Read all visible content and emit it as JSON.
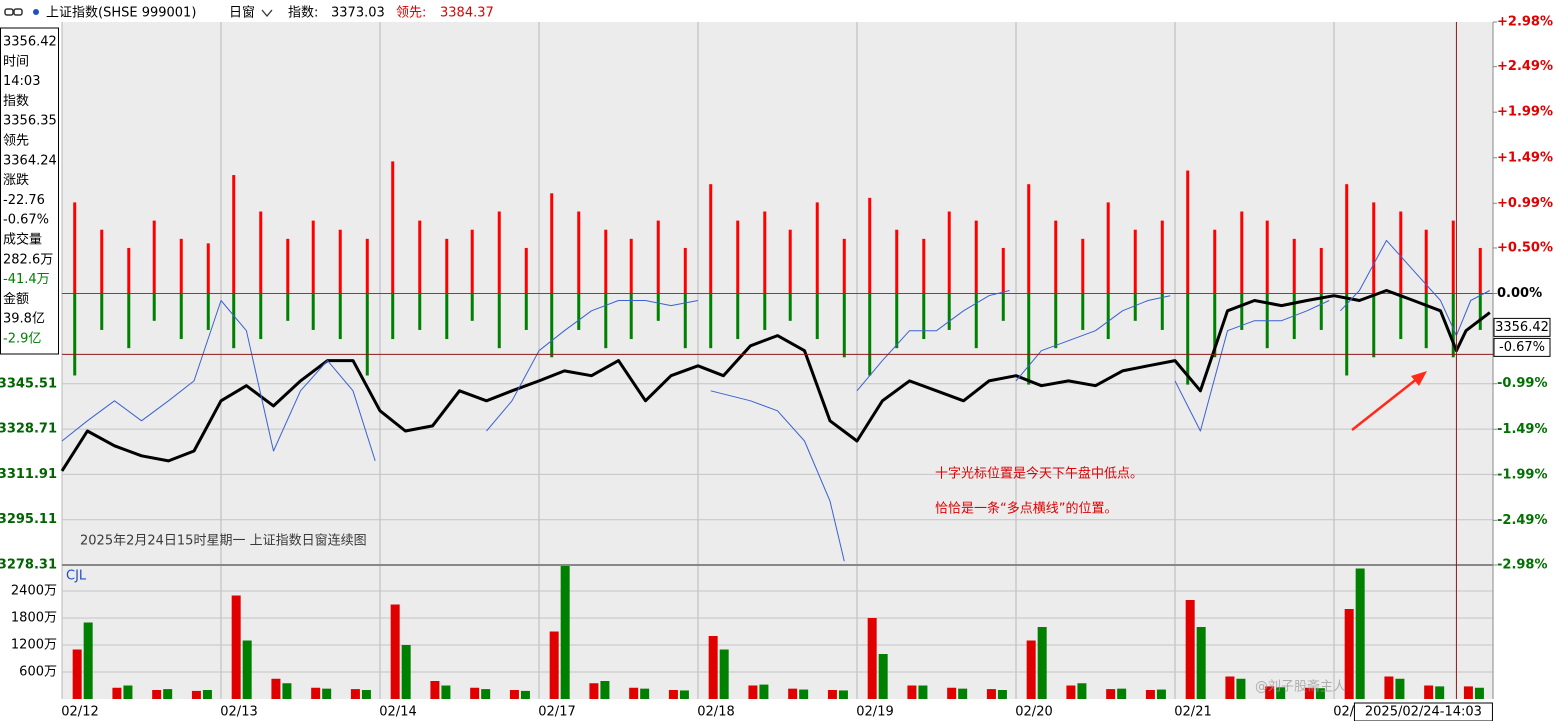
{
  "header": {
    "symbol": "上证指数(SHSE 999001)",
    "window": "日窗",
    "index_label": "指数:",
    "index_value": "3373.03",
    "lead_label": "领先:",
    "lead_value": "3384.37"
  },
  "info_panel": [
    {
      "text": "3356.42",
      "color": "#000000"
    },
    {
      "text": "时间",
      "color": "#000000"
    },
    {
      "text": "14:03",
      "color": "#000000"
    },
    {
      "text": "指数",
      "color": "#000000"
    },
    {
      "text": "3356.35",
      "color": "#000000"
    },
    {
      "text": "领先",
      "color": "#000000"
    },
    {
      "text": "3364.24",
      "color": "#000000"
    },
    {
      "text": "涨跌",
      "color": "#000000"
    },
    {
      "text": "-22.76",
      "color": "#000000"
    },
    {
      "text": "-0.67%",
      "color": "#000000"
    },
    {
      "text": "成交量",
      "color": "#000000"
    },
    {
      "text": "282.6万",
      "color": "#000000"
    },
    {
      "text": "-41.4万",
      "color": "#008000"
    },
    {
      "text": "金额",
      "color": "#000000"
    },
    {
      "text": "39.8亿",
      "color": "#000000"
    },
    {
      "text": "-2.9亿",
      "color": "#008000"
    }
  ],
  "annotations": {
    "title": "2025年2月24日15时星期一 上证指数日窗连续图",
    "note_1": "十字光标位置是今天下午盘中低点。",
    "note_2": "恰恰是一条“多点横线”的位置。",
    "watermark": "@刘子股斋主人",
    "volume_label": "CJL"
  },
  "chart_data": [
    {
      "type": "line",
      "xlim": [
        0,
        9
      ],
      "ylim": [
        3278.31,
        3479.69
      ],
      "yticks": [
        3278.31,
        3295.11,
        3311.91,
        3328.71,
        3345.51
      ],
      "y2lim": [
        -2.98,
        2.98
      ],
      "y2ticks": [
        {
          "value": 2.98,
          "label": "+2.98%"
        },
        {
          "value": 2.49,
          "label": "+2.49%"
        },
        {
          "value": 1.99,
          "label": "+1.99%"
        },
        {
          "value": 1.49,
          "label": "+1.49%"
        },
        {
          "value": 0.99,
          "label": "+0.99%"
        },
        {
          "value": 0.5,
          "label": "+0.50%"
        },
        {
          "value": 0,
          "label": "0.00%"
        },
        {
          "value": -0.99,
          "label": "-0.99%"
        },
        {
          "value": -1.49,
          "label": "-1.49%"
        },
        {
          "value": -1.99,
          "label": "-1.99%"
        },
        {
          "value": -2.49,
          "label": "-2.49%"
        },
        {
          "value": -2.98,
          "label": "-2.98%"
        }
      ],
      "xticks": [
        {
          "value": 0,
          "label": "02/12"
        },
        {
          "value": 1,
          "label": "02/13"
        },
        {
          "value": 2,
          "label": "02/14"
        },
        {
          "value": 3,
          "label": "02/17"
        },
        {
          "value": 4,
          "label": "02/18"
        },
        {
          "value": 5,
          "label": "02/19"
        },
        {
          "value": 6,
          "label": "02/20"
        },
        {
          "value": 7,
          "label": "02/21"
        },
        {
          "value": 8,
          "label": "02/24"
        }
      ],
      "grid": true,
      "series": [
        {
          "color": "#000000",
          "x": [
            0,
            0.16,
            0.33,
            0.5,
            0.67,
            0.83,
            1,
            1.16,
            1.33,
            1.5,
            1.67,
            1.83,
            2,
            2.16,
            2.33,
            2.5,
            2.67,
            2.83,
            3,
            3.16,
            3.33,
            3.5,
            3.67,
            3.83,
            4,
            4.16,
            4.33,
            4.5,
            4.67,
            4.83,
            5,
            5.16,
            5.33,
            5.5,
            5.67,
            5.83,
            6,
            6.16,
            6.33,
            6.5,
            6.67,
            6.83,
            7,
            7.16,
            7.33,
            7.5,
            7.67,
            7.83,
            8,
            8.16,
            8.33,
            8.5,
            8.67,
            8.77,
            8.83,
            8.98
          ],
          "values": [
            3313.2,
            3328.0,
            3322.5,
            3318.8,
            3316.9,
            3320.6,
            3339.2,
            3344.8,
            3337.3,
            3346.6,
            3354.1,
            3354.1,
            3335.5,
            3328.0,
            3329.9,
            3342.9,
            3339.2,
            3342.9,
            3346.6,
            3350.3,
            3348.5,
            3354.1,
            3339.2,
            3348.5,
            3352.2,
            3348.5,
            3359.6,
            3363.4,
            3357.8,
            3331.8,
            3324.3,
            3339.2,
            3346.6,
            3342.9,
            3339.2,
            3346.6,
            3348.5,
            3344.8,
            3346.6,
            3344.8,
            3350.3,
            3352.2,
            3354.1,
            3342.9,
            3372.6,
            3376.4,
            3374.5,
            3376.4,
            3378.2,
            3376.4,
            3380.1,
            3376.4,
            3372.6,
            3357.8,
            3365.2,
            3371.9
          ]
        },
        {
          "color": "#3a62d0",
          "x": [
            0,
            0.16,
            0.33,
            0.5,
            0.67,
            0.83,
            1,
            1.16,
            1.33,
            1.5,
            1.67,
            1.83,
            1.97,
            2.3,
            2.67,
            2.83,
            3,
            3.16,
            3.33,
            3.5,
            3.67,
            3.83,
            4,
            4.04,
            4.08,
            4.33,
            4.5,
            4.67,
            4.83,
            4.92,
            4.96,
            5,
            5.16,
            5.33,
            5.5,
            5.67,
            5.83,
            5.96,
            5.98,
            6,
            6.16,
            6.33,
            6.5,
            6.67,
            6.83,
            6.97,
            6.98,
            7,
            7.16,
            7.33,
            7.5,
            7.67,
            7.83,
            7.97,
            8,
            8.04,
            8.16,
            8.33,
            8.5,
            8.67,
            8.77,
            8.86,
            8.98
          ],
          "values": [
            3324.3,
            3331.8,
            3339.2,
            3331.8,
            3339.2,
            3346.6,
            3376.4,
            3365.2,
            3320.6,
            3342.9,
            3354.1,
            3342.9,
            3316.9,
            null,
            3328.0,
            3339.2,
            3357.8,
            3365.2,
            3372.6,
            3376.4,
            3376.4,
            3374.5,
            3376.4,
            null,
            3342.9,
            3339.2,
            3335.5,
            3324.3,
            3302.0,
            3279.7,
            null,
            3342.9,
            3354.1,
            3365.2,
            3365.2,
            3372.6,
            3378.2,
            3380.1,
            null,
            3346.6,
            3357.8,
            3361.5,
            3365.2,
            3372.6,
            3376.4,
            3378.2,
            null,
            3346.6,
            3328.0,
            3365.2,
            3368.9,
            3368.9,
            3372.6,
            3376.4,
            null,
            3372.6,
            3380.1,
            3398.7,
            3387.5,
            3376.4,
            3363.4,
            3376.4,
            3380.1
          ]
        }
      ],
      "crosshair": {
        "x": 8.77,
        "y": 3356.42,
        "y2": {
          "value": -0.67,
          "label": "-0.67%"
        },
        "time": "2025/02/24-14:03"
      }
    },
    {
      "type": "bar",
      "xlim": [
        0,
        9
      ],
      "x": [
        0.08,
        0.25,
        0.42,
        0.58,
        0.75,
        0.92,
        1.08,
        1.25,
        1.42,
        1.58,
        1.75,
        1.92,
        2.08,
        2.25,
        2.42,
        2.58,
        2.75,
        2.92,
        3.08,
        3.25,
        3.42,
        3.58,
        3.75,
        3.92,
        4.08,
        4.25,
        4.42,
        4.58,
        4.75,
        4.92,
        5.08,
        5.25,
        5.42,
        5.58,
        5.75,
        5.92,
        6.08,
        6.25,
        6.42,
        6.58,
        6.75,
        6.92,
        7.08,
        7.25,
        7.42,
        7.58,
        7.75,
        7.92,
        8.08,
        8.25,
        8.42,
        8.58,
        8.75,
        8.92
      ],
      "series": [
        {
          "color": "#ff0000",
          "axis": "y2",
          "values": [
            1.0,
            0.7,
            0.5,
            0.8,
            0.6,
            0.55,
            1.3,
            0.9,
            0.6,
            0.8,
            0.7,
            0.6,
            1.45,
            0.8,
            0.6,
            0.7,
            0.9,
            0.5,
            1.1,
            0.9,
            0.7,
            0.6,
            0.8,
            0.5,
            1.2,
            0.8,
            0.9,
            0.7,
            1.0,
            0.6,
            1.05,
            0.7,
            0.6,
            0.9,
            0.8,
            0.5,
            1.2,
            0.8,
            0.6,
            1.0,
            0.7,
            0.8,
            1.35,
            0.7,
            0.9,
            0.8,
            0.6,
            0.5,
            1.2,
            1.0,
            0.9,
            0.7,
            0.8,
            0.5
          ]
        },
        {
          "color": "#008000",
          "axis": "y2",
          "values": [
            -0.9,
            -0.4,
            -0.6,
            -0.3,
            -0.5,
            -0.4,
            -0.6,
            -0.5,
            -0.3,
            -0.4,
            -0.5,
            -0.9,
            -0.5,
            -0.4,
            -0.5,
            -0.3,
            -0.6,
            -0.4,
            -0.7,
            -0.4,
            -0.6,
            -0.5,
            -0.3,
            -0.6,
            -0.6,
            -0.5,
            -0.4,
            -0.3,
            -0.5,
            -0.7,
            -0.9,
            -0.6,
            -0.5,
            -0.4,
            -0.6,
            -0.3,
            -1.0,
            -0.6,
            -0.4,
            -0.5,
            -0.3,
            -0.4,
            -1.0,
            -0.7,
            -0.4,
            -0.6,
            -0.5,
            -0.4,
            -0.9,
            -0.7,
            -0.5,
            -0.6,
            -0.7,
            -0.4
          ]
        }
      ]
    },
    {
      "type": "bar",
      "xlim": [
        0,
        9
      ],
      "ylim": [
        0,
        2978
      ],
      "yticks": [
        {
          "value": 600,
          "label": "600万"
        },
        {
          "value": 1200,
          "label": "1200万"
        },
        {
          "value": 1800,
          "label": "1800万"
        },
        {
          "value": 2400,
          "label": "2400万"
        }
      ],
      "x": [
        0.13,
        0.38,
        0.63,
        0.88,
        1.13,
        1.38,
        1.63,
        1.88,
        2.13,
        2.38,
        2.63,
        2.88,
        3.13,
        3.38,
        3.63,
        3.88,
        4.13,
        4.38,
        4.63,
        4.88,
        5.13,
        5.38,
        5.63,
        5.88,
        6.13,
        6.38,
        6.63,
        6.88,
        7.13,
        7.38,
        7.63,
        7.88,
        8.13,
        8.38,
        8.63,
        8.88
      ],
      "series": [
        {
          "color": "#e00000",
          "values": [
            1100,
            250,
            200,
            180,
            2300,
            450,
            250,
            220,
            2100,
            400,
            250,
            200,
            1500,
            350,
            250,
            200,
            1400,
            300,
            230,
            200,
            1800,
            300,
            250,
            220,
            1300,
            300,
            220,
            200,
            2200,
            500,
            280,
            250,
            2000,
            500,
            300,
            280
          ]
        },
        {
          "color": "#008000",
          "values": [
            1700,
            300,
            220,
            200,
            1300,
            350,
            230,
            200,
            1200,
            300,
            220,
            180,
            2960,
            400,
            230,
            190,
            1100,
            320,
            210,
            190,
            1000,
            300,
            230,
            200,
            1600,
            350,
            230,
            210,
            1600,
            450,
            260,
            240,
            2900,
            450,
            280,
            250
          ]
        }
      ]
    }
  ]
}
